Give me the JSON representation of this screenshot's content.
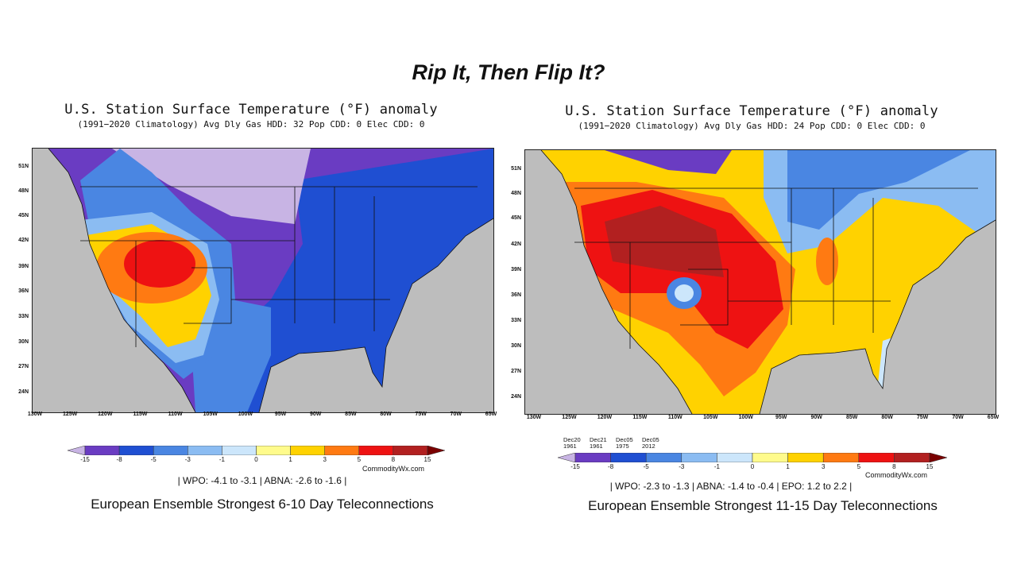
{
  "slide_title": "Rip It, Then Flip It?",
  "colorbar": {
    "ticks": [
      "-15",
      "-8",
      "-5",
      "-3",
      "-1",
      "0",
      "1",
      "3",
      "5",
      "8",
      "15"
    ],
    "colors": [
      "#c8b4e4",
      "#6a3cc2",
      "#1f4fd2",
      "#4a86e2",
      "#8bbcf2",
      "#cce6fb",
      "#fffb8c",
      "#ffd200",
      "#ff7a12",
      "#ee1212",
      "#b22020",
      "#7a0000"
    ]
  },
  "panels": [
    {
      "title": "U.S. Station Surface Temperature (°F) anomaly",
      "subtitle": "(1991−2020 Climatology) Avg Dly Gas HDD: 32 Pop CDD: 0 Elec CDD: 0",
      "credit": "CommodityWx.com",
      "teleconnections": "| WPO: -4.1 to -3.1 | ABNA: -2.6 to -1.6 |",
      "caption": "European Ensemble Strongest 6-10 Day Teleconnections",
      "lat_labels": [
        "51N",
        "48N",
        "45N",
        "42N",
        "39N",
        "36N",
        "33N",
        "30N",
        "27N",
        "24N"
      ],
      "lon_labels": [
        "130W",
        "125W",
        "120W",
        "115W",
        "110W",
        "105W",
        "100W",
        "95W",
        "90W",
        "85W",
        "80W",
        "75W",
        "70W",
        "65W"
      ]
    },
    {
      "title": "U.S. Station Surface Temperature (°F) anomaly",
      "subtitle": "(1991−2020 Climatology) Avg Dly Gas HDD: 24 Pop CDD: 0 Elec CDD: 0",
      "credit": "CommodityWx.com",
      "teleconnections": "| WPO: -2.3 to -1.3 | ABNA: -1.4 to -0.4 | EPO: 1.2 to 2.2 |",
      "caption": "European Ensemble Strongest 11-15 Day Teleconnections",
      "analog_dates": [
        [
          "Dec20",
          "1961"
        ],
        [
          "Dec21",
          "1961"
        ],
        [
          "Dec05",
          "1975"
        ],
        [
          "Dec05",
          "2012"
        ]
      ],
      "lat_labels": [
        "51N",
        "48N",
        "45N",
        "42N",
        "39N",
        "36N",
        "33N",
        "30N",
        "27N",
        "24N"
      ],
      "lon_labels": [
        "130W",
        "125W",
        "120W",
        "115W",
        "110W",
        "105W",
        "100W",
        "95W",
        "90W",
        "85W",
        "80W",
        "75W",
        "70W",
        "65W"
      ]
    }
  ]
}
